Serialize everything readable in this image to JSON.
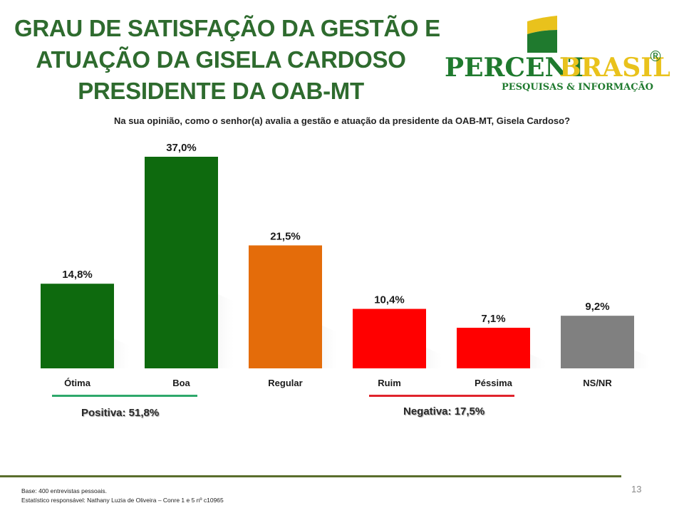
{
  "title_lines": [
    "GRAU DE SATISFAÇÃO DA GESTÃO E",
    "ATUAÇÃO DA GISELA CARDOSO",
    "PRESIDENTE DA OAB-MT"
  ],
  "logo": {
    "word1": "PERCENT",
    "word2": "BRASIL",
    "mark": "®",
    "tagline": "PESQUISAS & INFORMAÇÃO",
    "colors": {
      "green": "#1f7a2e",
      "yellow": "#e9c21c"
    }
  },
  "question": "Na sua opinião, como o senhor(a) avalia a gestão e atuação da presidente da OAB-MT, Gisela Cardoso?",
  "chart_data": {
    "type": "bar",
    "categories": [
      "Ótima",
      "Boa",
      "Regular",
      "Ruim",
      "Péssima",
      "NS/NR"
    ],
    "values": [
      14.8,
      37.0,
      21.5,
      10.4,
      7.1,
      9.2
    ],
    "value_labels": [
      "14,8%",
      "37,0%",
      "21,5%",
      "10,4%",
      "7,1%",
      "9,2%"
    ],
    "colors": [
      "#0e6a0e",
      "#0e6a0e",
      "#e46c0a",
      "#ff0000",
      "#ff0000",
      "#808080"
    ],
    "ylim": [
      0,
      37.0
    ],
    "grid": false,
    "legend": "none"
  },
  "groups": {
    "positive": {
      "label": "Positiva: 51,8%",
      "color": "#2ea86b"
    },
    "negative": {
      "label": "Negativa: 17,5%",
      "color": "#e0242c"
    }
  },
  "footer": {
    "base": "Base: 400 entrevistas pessoais.",
    "statistician": "Estatístico responsável: Nathany Luzia de Oliveira – Conre 1 e 5 nº c10965"
  },
  "page_number": "13"
}
